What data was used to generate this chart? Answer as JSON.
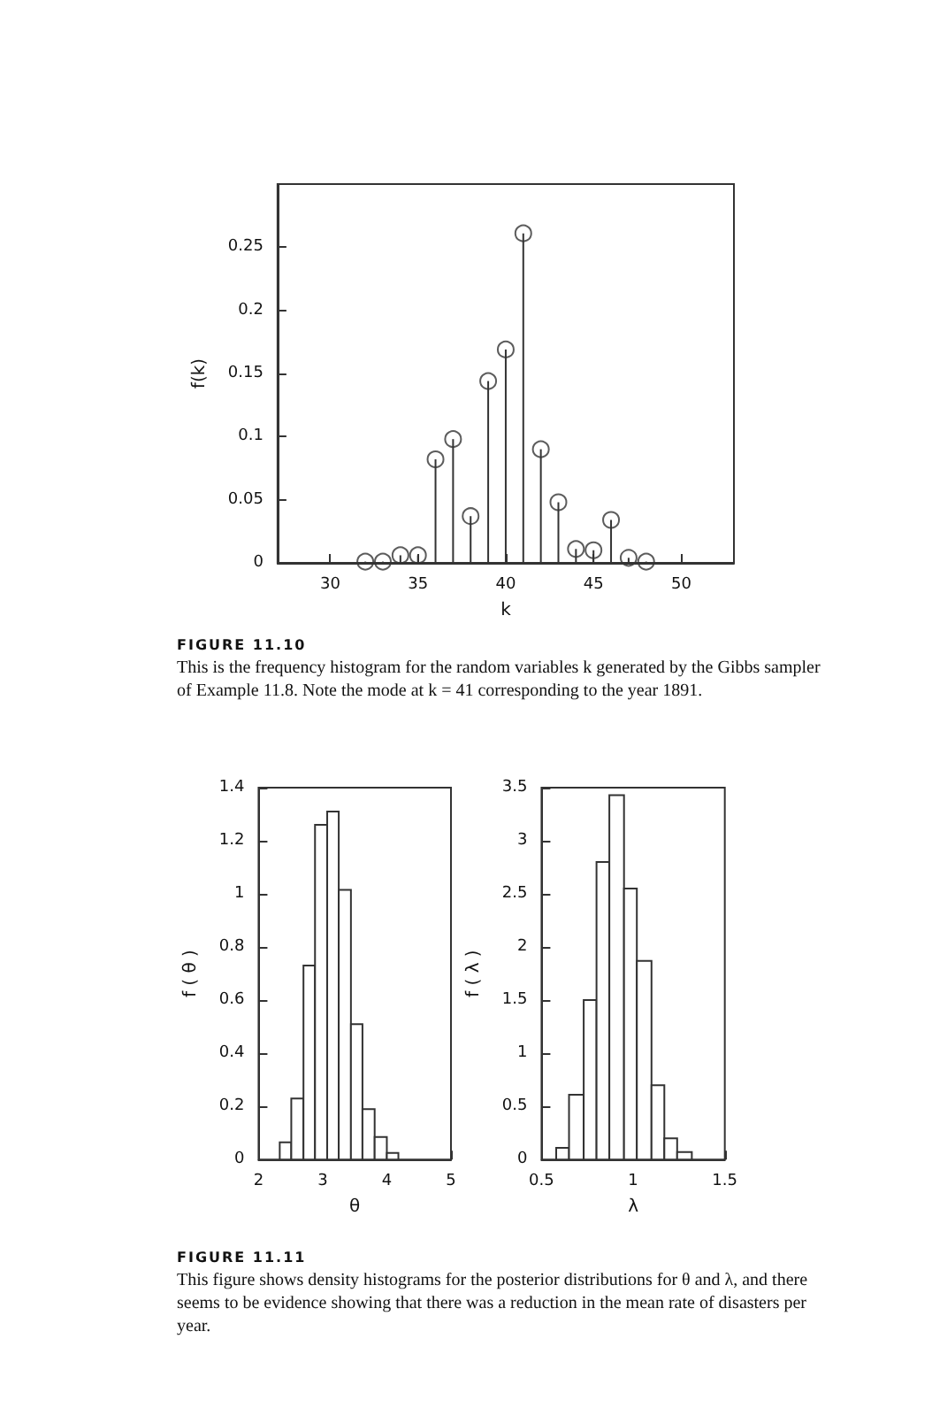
{
  "chart_data": [
    {
      "type": "lollipop",
      "xlabel": "k",
      "ylabel": "f(k)",
      "x": [
        32,
        33,
        34,
        35,
        36,
        37,
        38,
        39,
        40,
        41,
        42,
        43,
        44,
        45,
        46,
        47,
        48
      ],
      "values": [
        0.001,
        0.001,
        0.006,
        0.006,
        0.082,
        0.098,
        0.037,
        0.144,
        0.169,
        0.261,
        0.09,
        0.048,
        0.011,
        0.01,
        0.034,
        0.004,
        0.001
      ],
      "color": "#333333",
      "marker": "circle",
      "xlim": [
        27,
        53
      ],
      "xticks": [
        30,
        35,
        40,
        45,
        50
      ],
      "ylim": [
        0,
        0.3
      ],
      "yticks": [
        0,
        0.05,
        0.1,
        0.15,
        0.2,
        0.25
      ],
      "grid": false,
      "annotations": [
        "FIGURE 11.10",
        "This is the frequency histogram for the random variables k generated by the Gibbs sampler of Example 11.8. Note the mode at k = 41 corresponding to the year 1891."
      ]
    },
    {
      "type": "histogram",
      "xlabel": "θ",
      "ylabel": "f ( θ )",
      "bins": [
        2.33,
        2.51,
        2.7,
        2.88,
        3.07,
        3.25,
        3.44,
        3.62,
        3.81,
        4.0,
        4.18
      ],
      "values": [
        0.065,
        0.23,
        0.73,
        1.26,
        1.31,
        1.015,
        0.51,
        0.19,
        0.085,
        0.025
      ],
      "color": "#ffffff",
      "xlim": [
        2,
        5
      ],
      "xticks": [
        2,
        3,
        4,
        5
      ],
      "ylim": [
        0,
        1.4
      ],
      "yticks": [
        0,
        0.2,
        0.4,
        0.6,
        0.8,
        1,
        1.2,
        1.4
      ],
      "grid": false
    },
    {
      "type": "histogram",
      "xlabel": "λ",
      "ylabel": "f ( λ )",
      "bins": [
        0.58,
        0.65,
        0.73,
        0.8,
        0.87,
        0.95,
        1.02,
        1.1,
        1.17,
        1.24,
        1.32
      ],
      "values": [
        0.11,
        0.61,
        1.5,
        2.8,
        3.43,
        2.55,
        1.87,
        0.7,
        0.2,
        0.07
      ],
      "color": "#ffffff",
      "xlim": [
        0.5,
        1.5
      ],
      "xticks": [
        0.5,
        1,
        1.5
      ],
      "ylim": [
        0,
        3.5
      ],
      "yticks": [
        0,
        0.5,
        1,
        1.5,
        2,
        2.5,
        3,
        3.5
      ],
      "grid": false,
      "annotations": [
        "FIGURE 11.11",
        "This figure shows density histograms for the posterior distributions for θ and λ, and there seems to be evidence showing that there was a reduction in the mean rate of disasters per year."
      ]
    }
  ]
}
